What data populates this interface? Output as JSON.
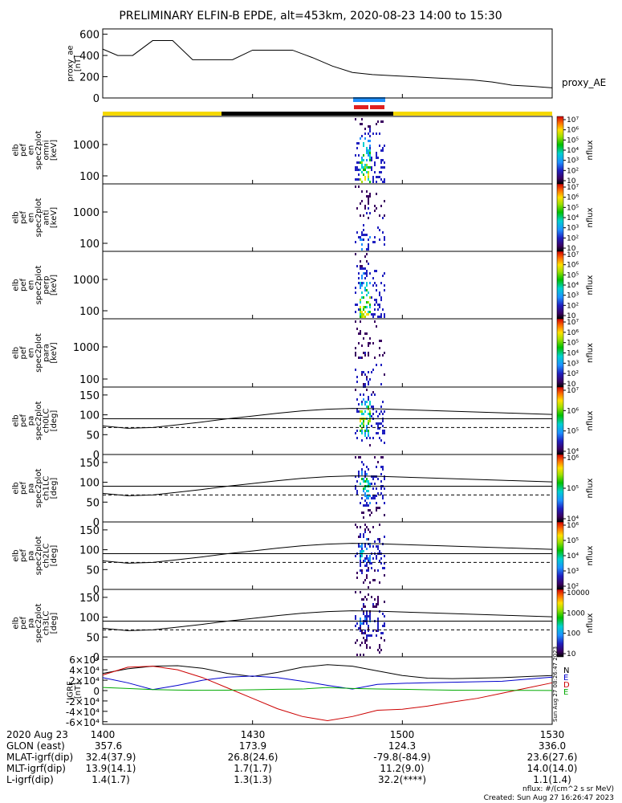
{
  "title": "PRELIMINARY ELFIN-B EPDE, alt=453km, 2020-08-23 14:00 to 15:30",
  "colors": {
    "sunlit_bar": "#f5d800",
    "shadow_bar": "#000000",
    "science_blue": "#1e90ff",
    "science_red": "#e02020",
    "bx": "#000000",
    "by": "#0000cc",
    "bz": "#cc0000",
    "bmag": "#00aa00"
  },
  "chart_data": [
    {
      "type": "line",
      "name": "proxy_ae",
      "ylabel_lines": [
        "proxy_ae",
        "[nT]"
      ],
      "legend": "proxy_AE",
      "ylim": [
        0,
        650
      ],
      "yticks": [
        "0",
        "200",
        "400",
        "600"
      ],
      "ytick_values": [
        0,
        200,
        400,
        600
      ],
      "x_minutes": [
        0,
        3,
        6,
        10,
        14,
        18,
        22,
        26,
        30,
        34,
        38,
        42,
        46,
        50,
        54,
        58,
        62,
        66,
        70,
        74,
        78,
        82,
        86,
        90
      ],
      "values": [
        460,
        400,
        400,
        540,
        540,
        360,
        360,
        360,
        450,
        450,
        450,
        380,
        300,
        240,
        220,
        210,
        200,
        190,
        180,
        170,
        150,
        120,
        110,
        95
      ]
    },
    {
      "type": "heatmap",
      "name": "spec2plot_omni",
      "ylabel_lines": [
        "elb",
        "pef",
        "en",
        "spec2plot",
        "omni",
        "[keV]"
      ],
      "yscale": "log",
      "yticks": [
        "100",
        "1000"
      ],
      "colorbar": {
        "label": "nflux",
        "ticks": [
          "10",
          "10²",
          "10³",
          "10⁴",
          "10⁵",
          "10⁶",
          "10⁷"
        ]
      }
    },
    {
      "type": "heatmap",
      "name": "spec2plot_anti",
      "ylabel_lines": [
        "elb",
        "pef",
        "en",
        "spec2plot",
        "anti",
        "[keV]"
      ],
      "yscale": "log",
      "yticks": [
        "100",
        "1000"
      ],
      "colorbar": {
        "label": "nflux",
        "ticks": [
          "10",
          "10²",
          "10³",
          "10⁴",
          "10⁵",
          "10⁶",
          "10⁷"
        ]
      }
    },
    {
      "type": "heatmap",
      "name": "spec2plot_perp",
      "ylabel_lines": [
        "elb",
        "pef",
        "en",
        "spec2plot",
        "perp",
        "[keV]"
      ],
      "yscale": "log",
      "yticks": [
        "100",
        "1000"
      ],
      "colorbar": {
        "label": "nflux",
        "ticks": [
          "10",
          "10²",
          "10³",
          "10⁴",
          "10⁵",
          "10⁶",
          "10⁷"
        ]
      }
    },
    {
      "type": "heatmap",
      "name": "spec2plot_para",
      "ylabel_lines": [
        "elb",
        "pef",
        "en",
        "spec2plot",
        "para",
        "[keV]"
      ],
      "yscale": "log",
      "yticks": [
        "100",
        "1000"
      ],
      "colorbar": {
        "label": "nflux",
        "ticks": [
          "10",
          "10²",
          "10³",
          "10⁴",
          "10⁵",
          "10⁶",
          "10⁷"
        ]
      }
    },
    {
      "type": "heatmap",
      "name": "spec2plot_ch0LC",
      "ylabel_lines": [
        "elb",
        "pef",
        "pa",
        "spec2plot",
        "ch0LC",
        "[deg]"
      ],
      "ylim": [
        0,
        170
      ],
      "yticks": [
        "0",
        "50",
        "100",
        "150"
      ],
      "ytick_values": [
        0,
        50,
        100,
        150
      ],
      "colorbar": {
        "label": "nflux",
        "ticks": [
          "10⁴",
          "10⁵",
          "10⁶",
          "10⁷"
        ]
      }
    },
    {
      "type": "heatmap",
      "name": "spec2plot_ch1LC",
      "ylabel_lines": [
        "elb",
        "pef",
        "pa",
        "spec2plot",
        "ch1LC",
        "[deg]"
      ],
      "ylim": [
        0,
        170
      ],
      "yticks": [
        "0",
        "50",
        "100",
        "150"
      ],
      "ytick_values": [
        0,
        50,
        100,
        150
      ],
      "colorbar": {
        "label": "nflux",
        "ticks": [
          "10⁴",
          "10⁵",
          "10⁶"
        ]
      }
    },
    {
      "type": "heatmap",
      "name": "spec2plot_ch2LC",
      "ylabel_lines": [
        "elb",
        "pef",
        "pa",
        "spec2plot",
        "ch2LC",
        "[deg]"
      ],
      "ylim": [
        0,
        170
      ],
      "yticks": [
        "0",
        "50",
        "100",
        "150"
      ],
      "ytick_values": [
        0,
        50,
        100,
        150
      ],
      "colorbar": {
        "label": "nflux",
        "ticks": [
          "10²",
          "10³",
          "10⁴",
          "10⁵",
          "10⁶"
        ]
      }
    },
    {
      "type": "heatmap",
      "name": "spec2plot_ch3LC",
      "ylabel_lines": [
        "elb",
        "pef",
        "pa",
        "spec2plot",
        "ch3LC",
        "[deg]"
      ],
      "ylim": [
        0,
        170
      ],
      "yticks": [
        "0",
        "50",
        "100",
        "150"
      ],
      "ytick_values": [
        0,
        50,
        100,
        150
      ],
      "colorbar": {
        "label": "nflux",
        "ticks": [
          "10",
          "100",
          "1000",
          "10000"
        ]
      }
    },
    {
      "type": "line",
      "name": "IGRF",
      "ylabel_lines": [
        "IGRF",
        "[nT]"
      ],
      "ylim": [
        -65000,
        65000
      ],
      "yticks": [
        "-6×10⁴",
        "-4×10⁴",
        "-2×10⁴",
        "0",
        "2×10⁴",
        "4×10⁴",
        "6×10⁴"
      ],
      "ytick_values": [
        -60000,
        -40000,
        -20000,
        0,
        20000,
        40000,
        60000
      ],
      "legend": [
        "N",
        "E",
        "D",
        "E"
      ],
      "x_minutes": [
        0,
        5,
        10,
        15,
        20,
        25,
        30,
        35,
        40,
        45,
        50,
        55,
        60,
        65,
        70,
        75,
        80,
        85,
        90
      ],
      "series": [
        {
          "values": [
            33000,
            42000,
            47000,
            48000,
            43000,
            33000,
            27000,
            35000,
            45000,
            50000,
            47000,
            38000,
            29000,
            24000,
            23000,
            24000,
            25000,
            27000,
            29000
          ]
        },
        {
          "values": [
            25000,
            15000,
            2000,
            10000,
            20000,
            26000,
            28000,
            25000,
            18000,
            10000,
            3000,
            12000,
            14000,
            15000,
            16000,
            17000,
            18000,
            22000,
            26000
          ]
        },
        {
          "values": [
            30000,
            45000,
            47000,
            40000,
            25000,
            5000,
            -15000,
            -35000,
            -50000,
            -58000,
            -50000,
            -38000,
            -36000,
            -30000,
            -22000,
            -15000,
            -5000,
            5000,
            15000
          ]
        },
        {
          "values": [
            6000,
            4000,
            2000,
            1000,
            500,
            800,
            1500,
            2500,
            3000,
            6000,
            4000,
            3000,
            2500,
            1500,
            800,
            500,
            400,
            300,
            200
          ]
        }
      ]
    }
  ],
  "time_axis": {
    "rows": [
      {
        "label": "2020 Aug 23",
        "values": [
          "1400",
          "1430",
          "1500",
          "1530"
        ]
      },
      {
        "label": "GLON (east)",
        "values": [
          "357.6",
          "173.9",
          "124.3",
          "336.0"
        ]
      },
      {
        "label": "MLAT-igrf(dip)",
        "values": [
          "32.4(37.9)",
          "26.8(24.6)",
          "-79.8(-84.9)",
          "23.6(27.6)"
        ]
      },
      {
        "label": "MLT-igrf(dip)",
        "values": [
          "13.9(14.1)",
          "1.7(1.7)",
          "11.2(9.0)",
          "14.0(14.0)"
        ]
      },
      {
        "label": "L-igrf(dip)",
        "values": [
          "1.4(1.7)",
          "1.3(1.3)",
          "32.2(****)",
          "1.1(1.4)"
        ]
      }
    ]
  },
  "footer": {
    "units": "nflux: #/(cm^2 s sr MeV)",
    "created": "Created: Sun Aug 27 16:26:47 2023",
    "side_stamp": "Sun Aug 27 08:26:47 2023"
  }
}
